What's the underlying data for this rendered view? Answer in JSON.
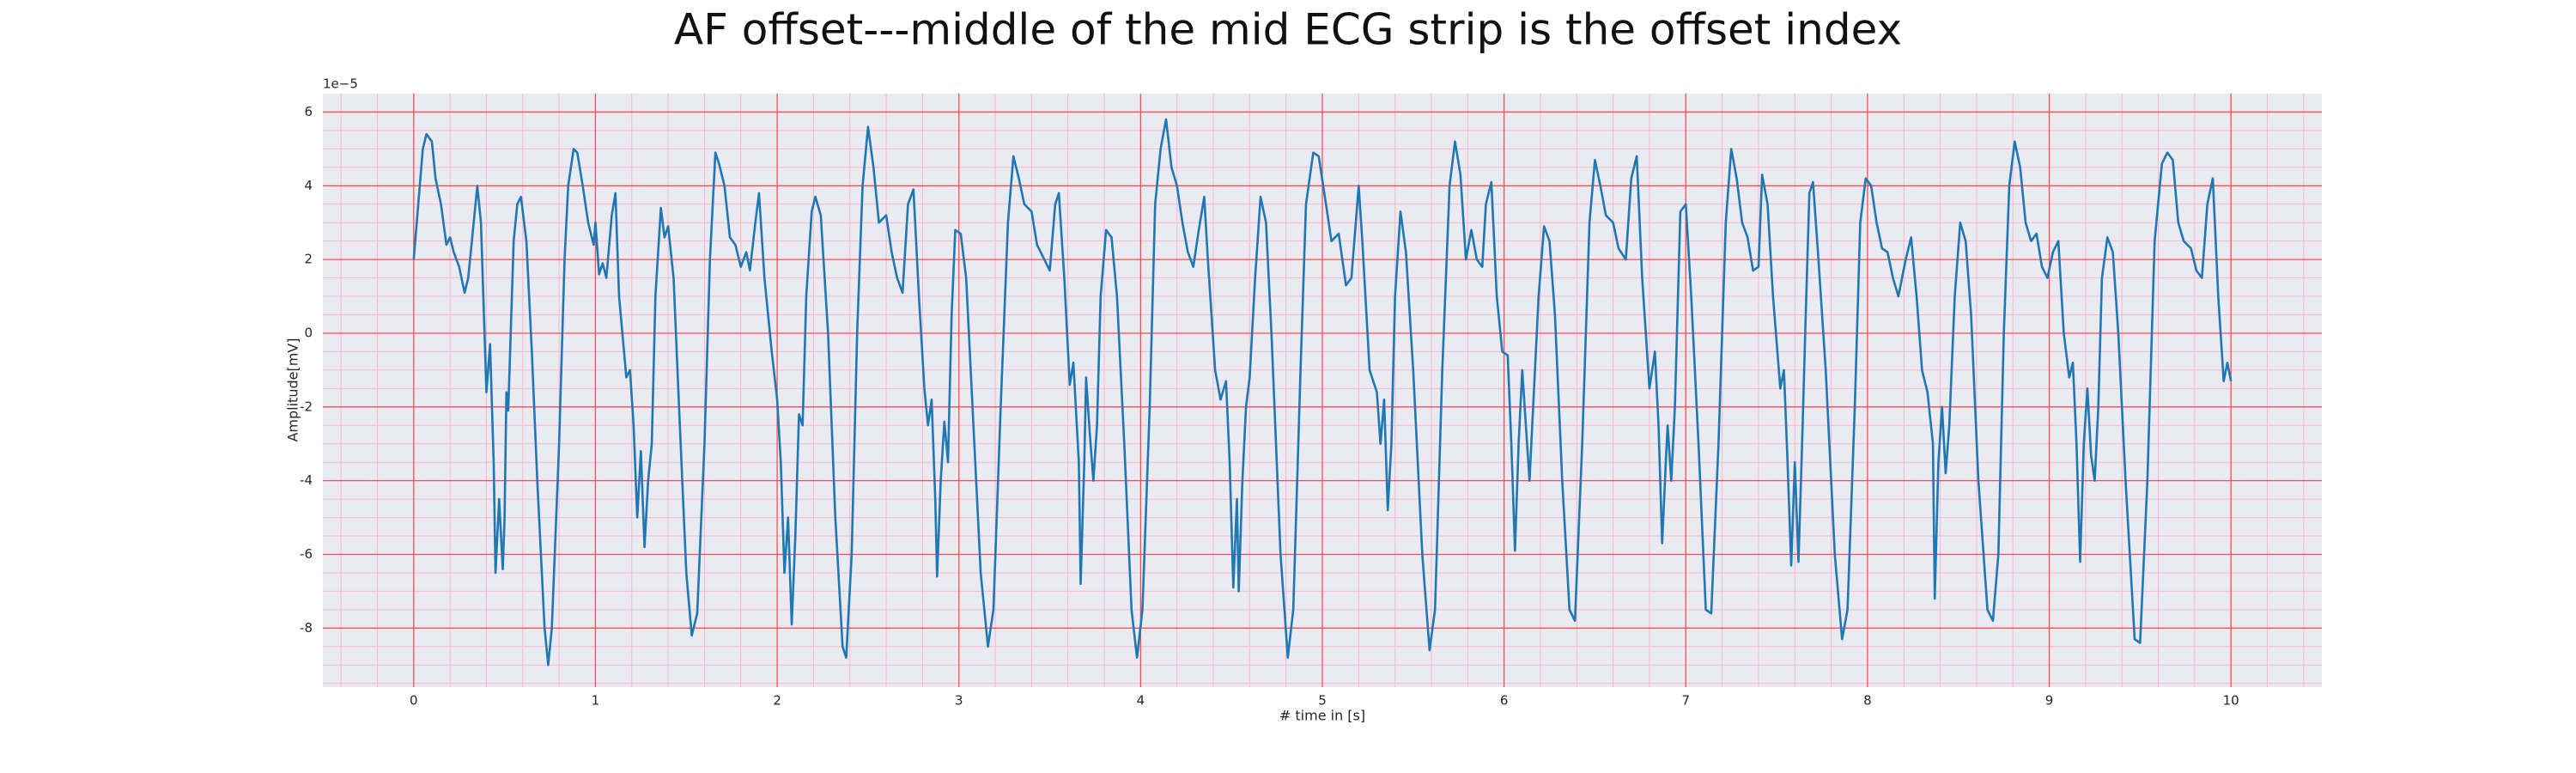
{
  "chart_data": {
    "type": "line",
    "title": "AF offset---middle of the mid ECG strip is the offset index",
    "xlabel": "# time in [s]",
    "ylabel": "Amplitude[mV]",
    "y_offset_text": "1e−5",
    "color": "#1f77b4",
    "grid": true,
    "major_grid_color": "#ff4d4d",
    "minor_grid_color": "#f7b8c8",
    "minor_grid": {
      "x_divisions": 5,
      "y_divisions": 4
    },
    "xlim": [
      -0.5,
      10.5
    ],
    "ylim": [
      -9.6,
      6.5
    ],
    "xticks": [
      0,
      1,
      2,
      3,
      4,
      5,
      6,
      7,
      8,
      9,
      10
    ],
    "yticks": [
      -8,
      -6,
      -4,
      -2,
      0,
      2,
      4,
      6
    ],
    "x": [
      0,
      0.05,
      0.07,
      0.1,
      0.12,
      0.15,
      0.18,
      0.2,
      0.22,
      0.25,
      0.28,
      0.3,
      0.33,
      0.35,
      0.37,
      0.4,
      0.42,
      0.44,
      0.45,
      0.47,
      0.49,
      0.5,
      0.51,
      0.52,
      0.55,
      0.57,
      0.59,
      0.62,
      0.65,
      0.68,
      0.72,
      0.74,
      0.76,
      0.8,
      0.83,
      0.85,
      0.88,
      0.9,
      0.93,
      0.96,
      0.99,
      1.0,
      1.02,
      1.04,
      1.06,
      1.09,
      1.11,
      1.13,
      1.17,
      1.19,
      1.21,
      1.23,
      1.25,
      1.27,
      1.29,
      1.31,
      1.33,
      1.36,
      1.38,
      1.4,
      1.43,
      1.46,
      1.5,
      1.53,
      1.56,
      1.6,
      1.63,
      1.66,
      1.68,
      1.71,
      1.74,
      1.77,
      1.8,
      1.83,
      1.85,
      1.88,
      1.9,
      1.93,
      1.97,
      2.0,
      2.02,
      2.04,
      2.06,
      2.08,
      2.1,
      2.12,
      2.14,
      2.16,
      2.19,
      2.21,
      2.24,
      2.28,
      2.32,
      2.36,
      2.38,
      2.41,
      2.44,
      2.47,
      2.5,
      2.53,
      2.56,
      2.6,
      2.63,
      2.66,
      2.69,
      2.72,
      2.75,
      2.78,
      2.81,
      2.83,
      2.85,
      2.87,
      2.88,
      2.9,
      2.92,
      2.94,
      2.96,
      2.98,
      3.01,
      3.04,
      3.08,
      3.12,
      3.16,
      3.19,
      3.23,
      3.27,
      3.3,
      3.33,
      3.36,
      3.4,
      3.43,
      3.47,
      3.5,
      3.53,
      3.55,
      3.58,
      3.61,
      3.63,
      3.66,
      3.67,
      3.69,
      3.7,
      3.72,
      3.74,
      3.76,
      3.78,
      3.81,
      3.84,
      3.87,
      3.91,
      3.95,
      3.98,
      4.01,
      4.05,
      4.08,
      4.11,
      4.14,
      4.17,
      4.2,
      4.23,
      4.26,
      4.29,
      4.32,
      4.35,
      4.37,
      4.41,
      4.44,
      4.47,
      4.49,
      4.51,
      4.53,
      4.54,
      4.56,
      4.58,
      4.6,
      4.63,
      4.66,
      4.69,
      4.72,
      4.77,
      4.81,
      4.84,
      4.88,
      4.91,
      4.95,
      4.98,
      5.02,
      5.05,
      5.09,
      5.13,
      5.16,
      5.2,
      5.22,
      5.26,
      5.3,
      5.32,
      5.34,
      5.36,
      5.38,
      5.4,
      5.43,
      5.46,
      5.5,
      5.55,
      5.59,
      5.62,
      5.66,
      5.7,
      5.73,
      5.76,
      5.79,
      5.82,
      5.85,
      5.88,
      5.9,
      5.93,
      5.96,
      5.99,
      6.02,
      6.04,
      6.06,
      6.08,
      6.1,
      6.12,
      6.14,
      6.16,
      6.19,
      6.22,
      6.25,
      6.28,
      6.32,
      6.36,
      6.39,
      6.43,
      6.47,
      6.5,
      6.53,
      6.56,
      6.6,
      6.63,
      6.67,
      6.7,
      6.73,
      6.76,
      6.8,
      6.83,
      6.85,
      6.87,
      6.89,
      6.9,
      6.92,
      6.94,
      6.97,
      7.0,
      7.03,
      7.07,
      7.11,
      7.14,
      7.18,
      7.22,
      7.25,
      7.28,
      7.31,
      7.34,
      7.37,
      7.4,
      7.42,
      7.45,
      7.48,
      7.52,
      7.54,
      7.56,
      7.58,
      7.6,
      7.62,
      7.64,
      7.66,
      7.68,
      7.7,
      7.73,
      7.77,
      7.82,
      7.86,
      7.89,
      7.93,
      7.96,
      7.99,
      8.02,
      8.05,
      8.08,
      8.11,
      8.14,
      8.17,
      8.21,
      8.24,
      8.27,
      8.3,
      8.33,
      8.36,
      8.37,
      8.39,
      8.41,
      8.43,
      8.45,
      8.48,
      8.51,
      8.54,
      8.57,
      8.61,
      8.66,
      8.69,
      8.72,
      8.75,
      8.78,
      8.81,
      8.84,
      8.87,
      8.9,
      8.93,
      8.96,
      8.99,
      9.02,
      9.05,
      9.08,
      9.11,
      9.13,
      9.15,
      9.17,
      9.19,
      9.21,
      9.23,
      9.25,
      9.27,
      9.29,
      9.32,
      9.35,
      9.38,
      9.42,
      9.47,
      9.5,
      9.54,
      9.58,
      9.62,
      9.65,
      9.68,
      9.71,
      9.74,
      9.78,
      9.81,
      9.84,
      9.87,
      9.9,
      9.93,
      9.96,
      9.98,
      10.0
    ],
    "values": [
      2.0,
      5.0,
      5.4,
      5.2,
      4.2,
      3.5,
      2.4,
      2.6,
      2.2,
      1.8,
      1.1,
      1.5,
      3.0,
      4.0,
      3.0,
      -1.6,
      -0.3,
      -3.5,
      -6.5,
      -4.5,
      -6.4,
      -5.0,
      -1.6,
      -2.1,
      2.5,
      3.5,
      3.7,
      2.5,
      -0.5,
      -4,
      -8,
      -9.0,
      -8,
      -3,
      2.0,
      4.0,
      5.0,
      4.9,
      4.0,
      3.0,
      2.4,
      3.0,
      1.6,
      1.9,
      1.5,
      3.2,
      3.8,
      1.0,
      -1.2,
      -1.0,
      -2.5,
      -5.0,
      -3.2,
      -5.8,
      -4.0,
      -3.0,
      1.0,
      3.4,
      2.6,
      2.9,
      1.5,
      -2,
      -6.5,
      -8.2,
      -7.6,
      -3,
      2.0,
      4.9,
      4.6,
      4.0,
      2.6,
      2.4,
      1.8,
      2.2,
      1.7,
      3.0,
      3.8,
      1.5,
      -0.5,
      -1.8,
      -3.5,
      -6.5,
      -5.0,
      -7.9,
      -5.5,
      -2.2,
      -2.5,
      1.0,
      3.3,
      3.7,
      3.2,
      0,
      -5,
      -8.5,
      -8.8,
      -6,
      0,
      4.0,
      5.6,
      4.5,
      3.0,
      3.2,
      2.2,
      1.5,
      1.1,
      3.5,
      3.9,
      1.0,
      -1.5,
      -2.5,
      -1.8,
      -4.5,
      -6.6,
      -4.0,
      -2.4,
      -3.5,
      0.5,
      2.8,
      2.7,
      1.5,
      -2.5,
      -6.5,
      -8.5,
      -7.5,
      -2,
      3.0,
      4.8,
      4.2,
      3.5,
      3.3,
      2.4,
      2.0,
      1.7,
      3.5,
      3.8,
      1.5,
      -1.4,
      -0.8,
      -3.5,
      -6.8,
      -3.5,
      -1.2,
      -2.7,
      -4.0,
      -2.5,
      1.0,
      2.8,
      2.6,
      1.0,
      -3,
      -7.5,
      -8.8,
      -7.5,
      -2,
      3.5,
      5.0,
      5.8,
      4.5,
      4.0,
      3.0,
      2.2,
      1.8,
      2.8,
      3.7,
      2.0,
      -1.0,
      -1.8,
      -1.3,
      -3.5,
      -6.9,
      -4.5,
      -7.0,
      -4.0,
      -2.0,
      -1.2,
      1.5,
      3.7,
      3.0,
      0,
      -6,
      -8.8,
      -7.5,
      -1,
      3.5,
      4.9,
      4.8,
      3.5,
      2.5,
      2.7,
      1.3,
      1.5,
      4.0,
      2.5,
      -1.0,
      -1.6,
      -3.0,
      -1.8,
      -4.8,
      -3.0,
      1.0,
      3.3,
      2.2,
      -1,
      -6,
      -8.6,
      -7.5,
      -1,
      4.0,
      5.2,
      4.3,
      2.0,
      2.8,
      2.0,
      1.8,
      3.5,
      4.1,
      1.0,
      -0.5,
      -0.6,
      -3.0,
      -5.9,
      -3.0,
      -1.0,
      -2.5,
      -4.0,
      -2.0,
      1.0,
      2.9,
      2.5,
      0.5,
      -4,
      -7.5,
      -7.8,
      -3,
      3.0,
      4.7,
      4.0,
      3.2,
      3.0,
      2.3,
      2.0,
      4.2,
      4.8,
      1.5,
      -1.5,
      -0.5,
      -2.5,
      -5.7,
      -3.5,
      -2.5,
      -4.0,
      -2.0,
      3.3,
      3.5,
      1.0,
      -3,
      -7.5,
      -7.6,
      -3,
      3.0,
      5.0,
      4.2,
      3.0,
      2.6,
      1.7,
      1.8,
      4.3,
      3.5,
      1.0,
      -1.5,
      -1.0,
      -3.5,
      -6.3,
      -3.5,
      -6.2,
      -3.0,
      0.5,
      3.8,
      4.1,
      2.0,
      -1,
      -6,
      -8.3,
      -7.5,
      -2,
      3.0,
      4.2,
      4.0,
      3.0,
      2.3,
      2.2,
      1.5,
      1.0,
      2.0,
      2.6,
      1.0,
      -1.0,
      -1.6,
      -3.0,
      -7.2,
      -3.5,
      -2.0,
      -3.8,
      -2.5,
      1.0,
      3.0,
      2.5,
      0.5,
      -4,
      -7.5,
      -7.8,
      -6,
      0,
      4.0,
      5.2,
      4.5,
      3.0,
      2.5,
      2.7,
      1.8,
      1.5,
      2.2,
      2.5,
      0,
      -1.2,
      -0.8,
      -3.0,
      -6.2,
      -3.0,
      -1.5,
      -3.3,
      -4.0,
      -2.0,
      1.5,
      2.6,
      2.2,
      0,
      -4,
      -8.3,
      -8.4,
      -4,
      2.5,
      4.6,
      4.9,
      4.7,
      3.0,
      2.5,
      2.3,
      1.7,
      1.5,
      3.5,
      4.2,
      1.0,
      -1.3,
      -0.8,
      -1.3
    ]
  }
}
